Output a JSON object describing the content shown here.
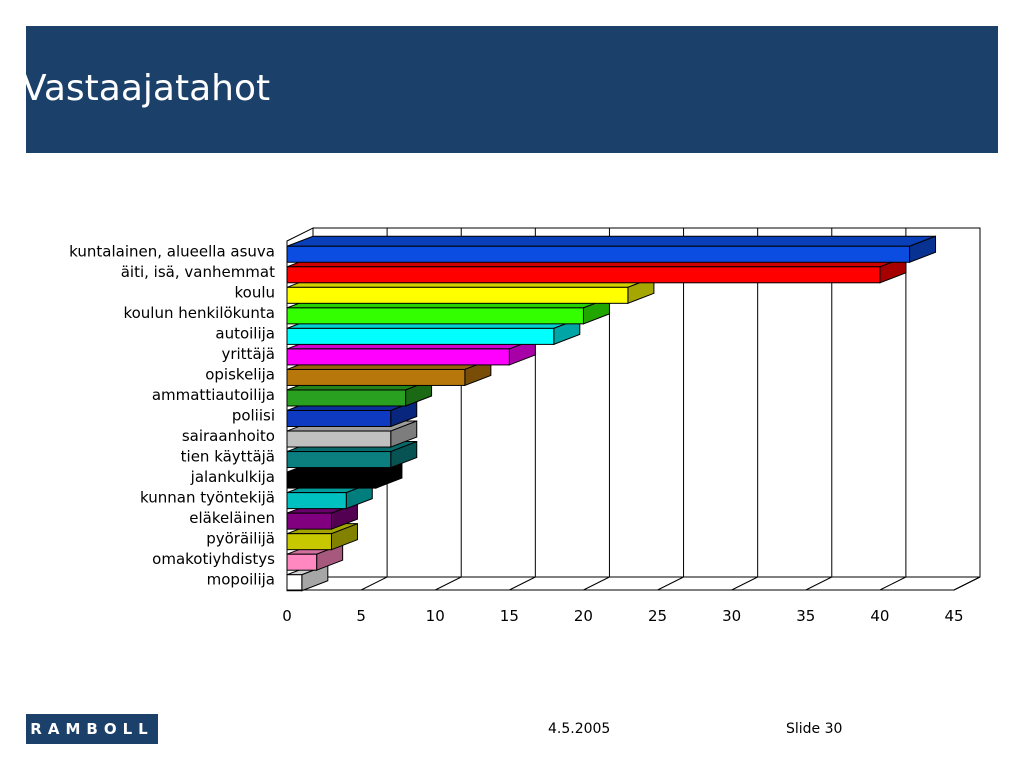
{
  "slide": {
    "title": "Vastaajatahot",
    "date": "4.5.2005",
    "slide_number": "Slide 30",
    "logo_text": "RAMBOLL",
    "header_color": "#1b416b"
  },
  "chart_data": {
    "type": "bar",
    "orientation": "horizontal",
    "style": "3d",
    "categories": [
      "kuntalainen, alueella asuva",
      "äiti, isä, vanhemmat",
      "koulu",
      "koulun henkilökunta",
      "autoilija",
      "yrittäjä",
      "opiskelija",
      "ammattiautoilija",
      "poliisi",
      "sairaanhoito",
      "tien käyttäjä",
      "jalankulkija",
      "kunnan työntekijä",
      "eläkeläinen",
      "pyöräilijä",
      "omakotiyhdistys",
      "mopoilija"
    ],
    "values": [
      42,
      40,
      23,
      20,
      18,
      15,
      12,
      8,
      7,
      7,
      7,
      6,
      4,
      3,
      3,
      2,
      1
    ],
    "colors": [
      "#0b4de0",
      "#ff0000",
      "#ffff00",
      "#33ff00",
      "#00ffff",
      "#ff00ff",
      "#b8770a",
      "#2aa020",
      "#0d3ac0",
      "#c0c0c0",
      "#0b7f7f",
      "#000000",
      "#00c0c0",
      "#800080",
      "#c8c800",
      "#ff88c0",
      "#ffffff"
    ],
    "xlim": [
      0,
      45
    ],
    "x_ticks": [
      0,
      5,
      10,
      15,
      20,
      25,
      30,
      35,
      40,
      45
    ],
    "grid": true,
    "legend": "none",
    "title": "",
    "xlabel": "",
    "ylabel": ""
  }
}
